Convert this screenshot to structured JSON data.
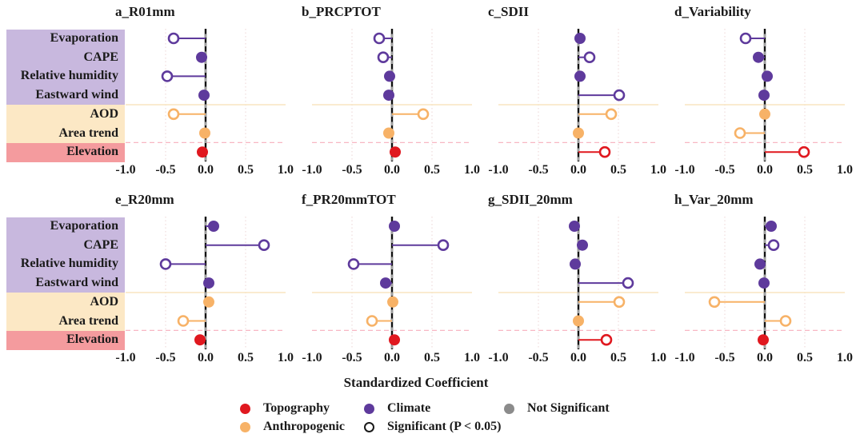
{
  "chart_data": {
    "type": "scatter",
    "variant": "lollipop-dot-plot, 8 panels (2 rows x 4 cols), shared category axis",
    "xlabel": "Standardized Coefficient",
    "xlim": [
      -1.0,
      1.0
    ],
    "xticks": [
      -1.0,
      -0.5,
      0.0,
      0.5,
      1.0
    ],
    "xtick_labels": [
      "-1.0",
      "-0.5",
      "0.0",
      "0.5",
      "1.0"
    ],
    "categories": [
      "Evaporation",
      "CAPE",
      "Relative humidity",
      "Eastward wind",
      "AOD",
      "Area trend",
      "Elevation"
    ],
    "category_groups": [
      {
        "name": "Climate",
        "rows": [
          0,
          1,
          2,
          3
        ],
        "marker_color": "#5E3A9C",
        "label_bg": "#C8B8DE"
      },
      {
        "name": "Anthropogenic",
        "rows": [
          4,
          5
        ],
        "marker_color": "#F7B267",
        "label_bg": "#FCE8C5"
      },
      {
        "name": "Topography",
        "rows": [
          6
        ],
        "marker_color": "#E0181F",
        "label_bg": "#F49B9E"
      }
    ],
    "panels": [
      {
        "title": "a_R01mm",
        "values": [
          -0.4,
          -0.05,
          -0.48,
          -0.02,
          -0.4,
          -0.01,
          -0.04
        ],
        "significant": [
          true,
          false,
          true,
          false,
          true,
          false,
          false
        ]
      },
      {
        "title": "b_PRCPTOT",
        "values": [
          -0.16,
          -0.11,
          -0.03,
          -0.04,
          0.39,
          -0.04,
          0.04
        ],
        "significant": [
          true,
          true,
          false,
          false,
          true,
          false,
          false
        ]
      },
      {
        "title": "c_SDII",
        "values": [
          0.02,
          0.14,
          0.02,
          0.51,
          0.41,
          0.0,
          0.33
        ],
        "significant": [
          false,
          true,
          false,
          true,
          true,
          false,
          true
        ]
      },
      {
        "title": "d_Variability",
        "values": [
          -0.24,
          -0.08,
          0.03,
          -0.01,
          0.0,
          -0.31,
          0.49
        ],
        "significant": [
          true,
          false,
          false,
          false,
          false,
          true,
          true
        ]
      },
      {
        "title": "e_R20mm",
        "values": [
          0.1,
          0.73,
          -0.5,
          0.04,
          0.04,
          -0.28,
          -0.07
        ],
        "significant": [
          false,
          true,
          true,
          false,
          false,
          true,
          false
        ]
      },
      {
        "title": "f_PR20mmTOT",
        "values": [
          0.03,
          0.64,
          -0.48,
          -0.08,
          0.01,
          -0.25,
          0.03
        ],
        "significant": [
          false,
          true,
          true,
          false,
          false,
          true,
          false
        ]
      },
      {
        "title": "g_SDII_20mm",
        "values": [
          -0.05,
          0.05,
          -0.04,
          0.62,
          0.51,
          0.0,
          0.35
        ],
        "significant": [
          false,
          false,
          false,
          true,
          true,
          false,
          true
        ]
      },
      {
        "title": "h_Var_20mm",
        "values": [
          0.08,
          0.11,
          -0.06,
          -0.01,
          -0.63,
          0.26,
          -0.02
        ],
        "significant": [
          false,
          true,
          false,
          false,
          true,
          true,
          false
        ]
      }
    ],
    "legend": [
      {
        "label": "Topography",
        "color": "#E0181F",
        "style": "filled"
      },
      {
        "label": "Anthropogenic",
        "color": "#F7B267",
        "style": "filled"
      },
      {
        "label": "Climate",
        "color": "#5E3A9C",
        "style": "filled"
      },
      {
        "label": "Significant (P < 0.05)",
        "color": "#1a1a1a",
        "style": "open"
      },
      {
        "label": "Not Significant",
        "color": "#8B8B8B",
        "style": "filled"
      }
    ],
    "grid": {
      "vlines_at": [
        -0.5,
        0.5
      ],
      "vline_style": "dotted #EFDCDC",
      "zero_line": "black dashed over grey solid",
      "separator_after_row_3": {
        "style": "solid",
        "color": "#F6DFB4"
      },
      "separator_after_row_5": {
        "style": "dashed",
        "color": "#F8B7C3"
      }
    },
    "colors": {
      "climate": "#5E3A9C",
      "anthropogenic": "#F7B267",
      "topography": "#E0181F",
      "not_significant_legend": "#8B8B8B",
      "climate_label_bg": "#C8B8DE",
      "anthropogenic_label_bg": "#FCE8C5",
      "topography_label_bg": "#F49B9E"
    }
  }
}
